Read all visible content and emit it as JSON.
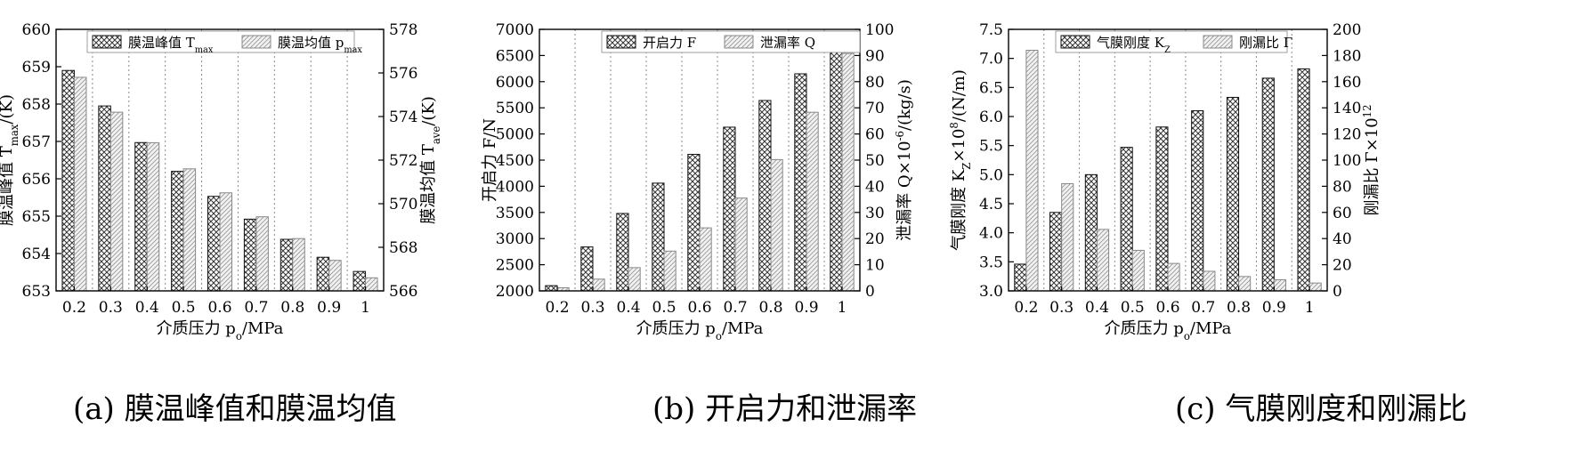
{
  "chart_data": [
    {
      "type": "bar",
      "caption": "(a) 膜温峰值和膜温均值",
      "categories": [
        "0.2",
        "0.3",
        "0.4",
        "0.5",
        "0.6",
        "0.7",
        "0.8",
        "0.9",
        "1"
      ],
      "xlabel": "介质压力 p_o/MPa",
      "ylabel_left": "膜温峰值 T_max/(K)",
      "ylabel_right": "膜温均值 T_ave/(K)",
      "ylim_left": [
        653,
        660
      ],
      "yticks_left": [
        "653",
        "654",
        "655",
        "656",
        "657",
        "658",
        "659",
        "660"
      ],
      "ylim_right": [
        566,
        578
      ],
      "yticks_right": [
        "566",
        "568",
        "570",
        "572",
        "574",
        "576",
        "578"
      ],
      "series": [
        {
          "name": "膜温峰值 T_max",
          "axis": "left",
          "pattern": "cross",
          "values": [
            658.9,
            657.95,
            656.97,
            656.2,
            655.53,
            654.92,
            654.38,
            653.9,
            653.52
          ]
        },
        {
          "name": "膜温均值 p_max",
          "axis": "right",
          "pattern": "diag",
          "values": [
            575.8,
            574.2,
            572.8,
            571.6,
            570.5,
            569.4,
            568.4,
            567.4,
            566.6
          ]
        }
      ],
      "grid": "vertical-dotted",
      "legend": "top"
    },
    {
      "type": "bar",
      "caption": "(b) 开启力和泄漏率",
      "categories": [
        "0.2",
        "0.3",
        "0.4",
        "0.5",
        "0.6",
        "0.7",
        "0.8",
        "0.9",
        "1"
      ],
      "xlabel": "介质压力 p_o/MPa",
      "ylabel_left": "开启力 F/N",
      "ylabel_right": "泄漏率 Q×10^-6/(kg/s)",
      "ylim_left": [
        2000,
        7000
      ],
      "yticks_left": [
        "2000",
        "2500",
        "3000",
        "3500",
        "4000",
        "4500",
        "5000",
        "5500",
        "6000",
        "6500",
        "7000"
      ],
      "ylim_right": [
        0,
        100
      ],
      "yticks_right": [
        "0",
        "10",
        "20",
        "30",
        "40",
        "50",
        "60",
        "70",
        "80",
        "90",
        "100"
      ],
      "series": [
        {
          "name": "开启力 F",
          "axis": "left",
          "pattern": "cross",
          "values": [
            2100,
            2840,
            3480,
            4060,
            4610,
            5130,
            5640,
            6150,
            6630
          ]
        },
        {
          "name": "泄漏率 Q",
          "axis": "right",
          "pattern": "diag",
          "values": [
            1.2,
            4.5,
            8.9,
            15.2,
            24.1,
            35.5,
            50.2,
            68.3,
            90.8
          ]
        }
      ],
      "grid": "vertical-dotted",
      "legend": "top"
    },
    {
      "type": "bar",
      "caption": "(c) 气膜刚度和刚漏比",
      "categories": [
        "0.2",
        "0.3",
        "0.4",
        "0.5",
        "0.6",
        "0.7",
        "0.8",
        "0.9",
        "1"
      ],
      "xlabel": "介质压力 p_o/MPa",
      "ylabel_left": "气膜刚度 K_Z×10^8/(N/m)",
      "ylabel_right": "刚漏比 Γ×10^12",
      "ylim_left": [
        3.0,
        7.5
      ],
      "yticks_left": [
        "3.0",
        "3.5",
        "4.0",
        "4.5",
        "5.0",
        "5.5",
        "6.0",
        "6.5",
        "7.0",
        "7.5"
      ],
      "ylim_right": [
        0,
        200
      ],
      "yticks_right": [
        "0",
        "20",
        "40",
        "60",
        "80",
        "100",
        "120",
        "140",
        "160",
        "180",
        "200"
      ],
      "series": [
        {
          "name": "气膜刚度 K_Z",
          "axis": "left",
          "pattern": "cross",
          "values": [
            3.46,
            4.35,
            5.0,
            5.47,
            5.82,
            6.1,
            6.33,
            6.66,
            6.82
          ]
        },
        {
          "name": "刚漏比 Γ",
          "axis": "right",
          "pattern": "diag",
          "values": [
            184,
            82,
            47,
            31,
            21,
            15,
            11,
            8.5,
            6
          ]
        }
      ],
      "grid": "vertical-dotted",
      "legend": "top"
    }
  ]
}
